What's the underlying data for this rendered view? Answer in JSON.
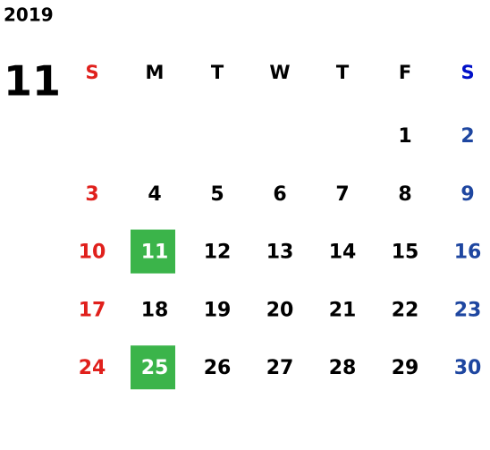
{
  "header": {
    "year": "2019",
    "month": "11"
  },
  "weekdays": [
    "S",
    "M",
    "T",
    "W",
    "T",
    "F",
    "S"
  ],
  "weeks": [
    [
      null,
      null,
      null,
      null,
      null,
      "1",
      "2"
    ],
    [
      "3",
      "4",
      "5",
      "6",
      "7",
      "8",
      "9"
    ],
    [
      "10",
      "11",
      "12",
      "13",
      "14",
      "15",
      "16"
    ],
    [
      "17",
      "18",
      "19",
      "20",
      "21",
      "22",
      "23"
    ],
    [
      "24",
      "25",
      "26",
      "27",
      "28",
      "29",
      "30"
    ]
  ],
  "colors": {
    "sunday": "#e0201c",
    "saturday_header": "#0010c8",
    "saturday": "#1e46a0",
    "weekday": "#000000",
    "highlight": "#3bb44a",
    "highlight_text": "#ffffff"
  },
  "highlighted_days": [
    "11",
    "25"
  ]
}
